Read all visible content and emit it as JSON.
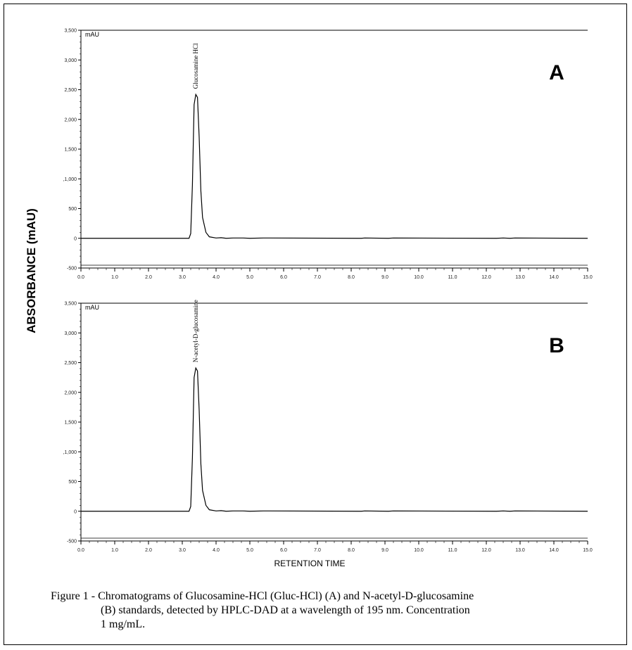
{
  "y_axis_title": "ABSORBANCE (mAU)",
  "x_axis_title": "RETENTION TIME",
  "caption_lines": [
    "Figure 1 - Chromatograms of Glucosamine-HCl (Gluc-HCl) (A) and N-acetyl-D-glucosamine",
    "(B) standards, detected by HPLC-DAD at a wavelength of 195 nm. Concentration",
    "1 mg/mL."
  ],
  "colors": {
    "trace": "#000000",
    "axis": "#000000",
    "background": "#ffffff"
  },
  "chart_data": [
    {
      "type": "line",
      "panel_label": "A",
      "unit_label": "mAU",
      "peak_label": "Glucosamine HCl",
      "xlim": [
        0,
        15
      ],
      "ylim": [
        -500,
        3500
      ],
      "x_ticks": [
        "0.0",
        "1.0",
        "2.0",
        "3.0",
        "4.0",
        "5.0",
        "6.0",
        "7.0",
        "8.0",
        "9.0",
        "10.0",
        "11.0",
        "12.0",
        "13.0",
        "14.0",
        "15.0"
      ],
      "y_ticks": [
        "-500",
        "0",
        "500",
        ",1,000",
        "1,500",
        "2,000",
        "2,500",
        "3,000",
        "3,500"
      ],
      "x": [
        0,
        3.2,
        3.25,
        3.3,
        3.35,
        3.4,
        3.45,
        3.5,
        3.55,
        3.6,
        3.7,
        3.8,
        4.0,
        4.15,
        4.3,
        4.5,
        4.8,
        5.0,
        5.4,
        5.6,
        8.3,
        8.4,
        9.1,
        9.25,
        12.3,
        12.5,
        12.7,
        12.85,
        15
      ],
      "y": [
        0,
        0,
        80,
        900,
        2250,
        2420,
        2370,
        1700,
        800,
        350,
        100,
        25,
        5,
        10,
        0,
        5,
        5,
        0,
        5,
        5,
        0,
        5,
        0,
        5,
        0,
        5,
        0,
        5,
        0
      ]
    },
    {
      "type": "line",
      "panel_label": "B",
      "unit_label": "mAU",
      "peak_label": "N-acetyl-D-glucosamine",
      "xlim": [
        0,
        15
      ],
      "ylim": [
        -500,
        3500
      ],
      "x_ticks": [
        "0.0",
        "1.0",
        "2.0",
        "3.0",
        "4.0",
        "5.0",
        "6.0",
        "7.0",
        "8.0",
        "9.0",
        "10.0",
        "11.0",
        "12.0",
        "13.0",
        "14.0",
        "15.0"
      ],
      "y_ticks": [
        "-500",
        "0",
        "500",
        ",1,000",
        "1,500",
        "2,000",
        "2,500",
        "3,000",
        "3,500"
      ],
      "x": [
        0,
        3.2,
        3.25,
        3.3,
        3.35,
        3.4,
        3.45,
        3.5,
        3.55,
        3.6,
        3.7,
        3.8,
        4.0,
        4.15,
        4.3,
        4.5,
        4.8,
        5.0,
        5.4,
        5.6,
        8.3,
        8.4,
        9.1,
        9.25,
        12.3,
        12.5,
        12.7,
        12.85,
        15
      ],
      "y": [
        0,
        0,
        80,
        900,
        2250,
        2410,
        2360,
        1700,
        800,
        350,
        100,
        25,
        5,
        10,
        0,
        5,
        5,
        0,
        5,
        5,
        0,
        5,
        0,
        5,
        0,
        5,
        0,
        5,
        0
      ]
    }
  ]
}
